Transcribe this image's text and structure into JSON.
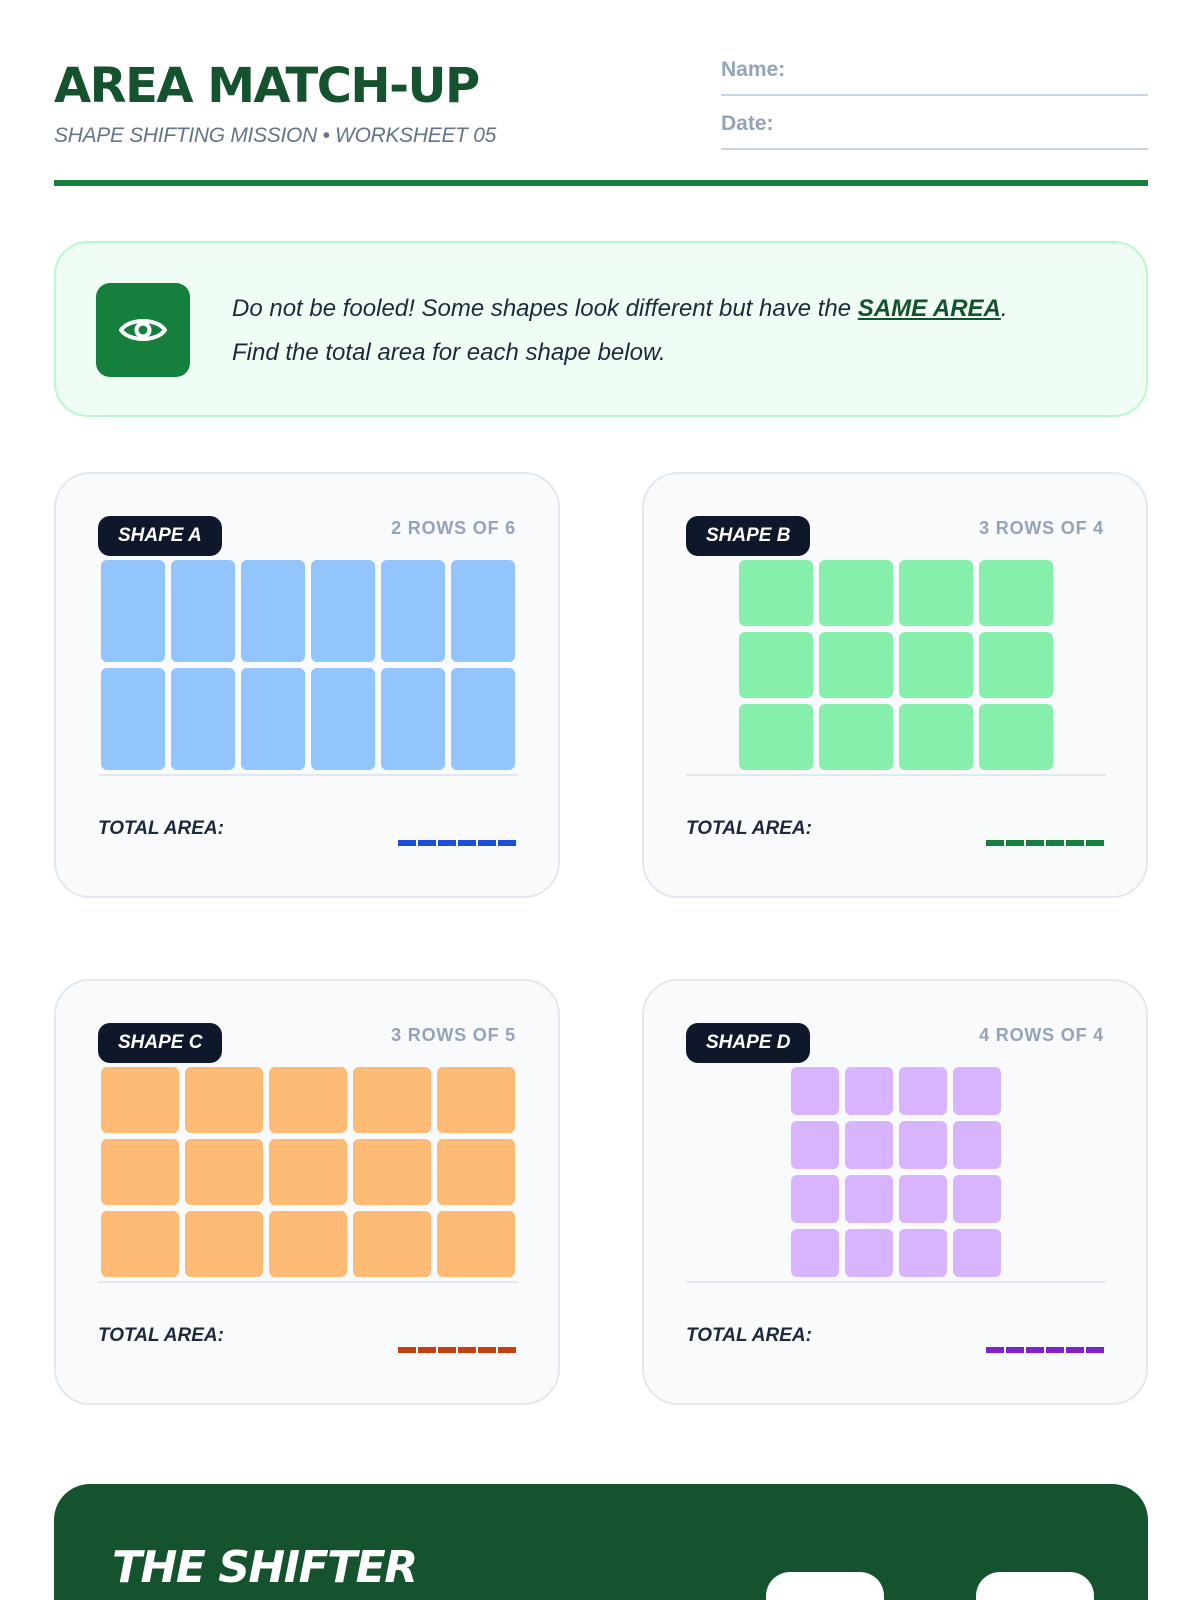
{
  "header": {
    "title": "AREA MATCH-UP",
    "subtitle": "SHAPE SHIFTING MISSION • WORKSHEET 05",
    "name_label": "Name:",
    "date_label": "Date:"
  },
  "callout": {
    "icon": "eye-icon",
    "text_before": "Do not be fooled! Some shapes look different but have the ",
    "emphasis": "SAME AREA",
    "text_after": ".",
    "line2": "Find the total area for each shape below."
  },
  "shapes": [
    {
      "badge": "SHAPE A",
      "rows_label": "2 ROWS OF 6",
      "rows": 2,
      "cols": 6,
      "fill": "#93c5fd",
      "accent": "#1d4ed8",
      "total_label": "TOTAL AREA:"
    },
    {
      "badge": "SHAPE B",
      "rows_label": "3 ROWS OF 4",
      "rows": 3,
      "cols": 4,
      "fill": "#86efac",
      "accent": "#15803d",
      "total_label": "TOTAL AREA:"
    },
    {
      "badge": "SHAPE C",
      "rows_label": "3 ROWS OF 5",
      "rows": 3,
      "cols": 5,
      "fill": "#fdba74",
      "accent": "#c2410c",
      "total_label": "TOTAL AREA:"
    },
    {
      "badge": "SHAPE D",
      "rows_label": "4 ROWS OF 4",
      "rows": 4,
      "cols": 4,
      "fill": "#d8b4fe",
      "accent": "#7e22ce",
      "total_label": "TOTAL AREA:"
    }
  ],
  "shifter": {
    "title": "THE SHIFTER"
  },
  "colors": {
    "primary_green": "#15803d",
    "dark_green": "#14532d"
  }
}
